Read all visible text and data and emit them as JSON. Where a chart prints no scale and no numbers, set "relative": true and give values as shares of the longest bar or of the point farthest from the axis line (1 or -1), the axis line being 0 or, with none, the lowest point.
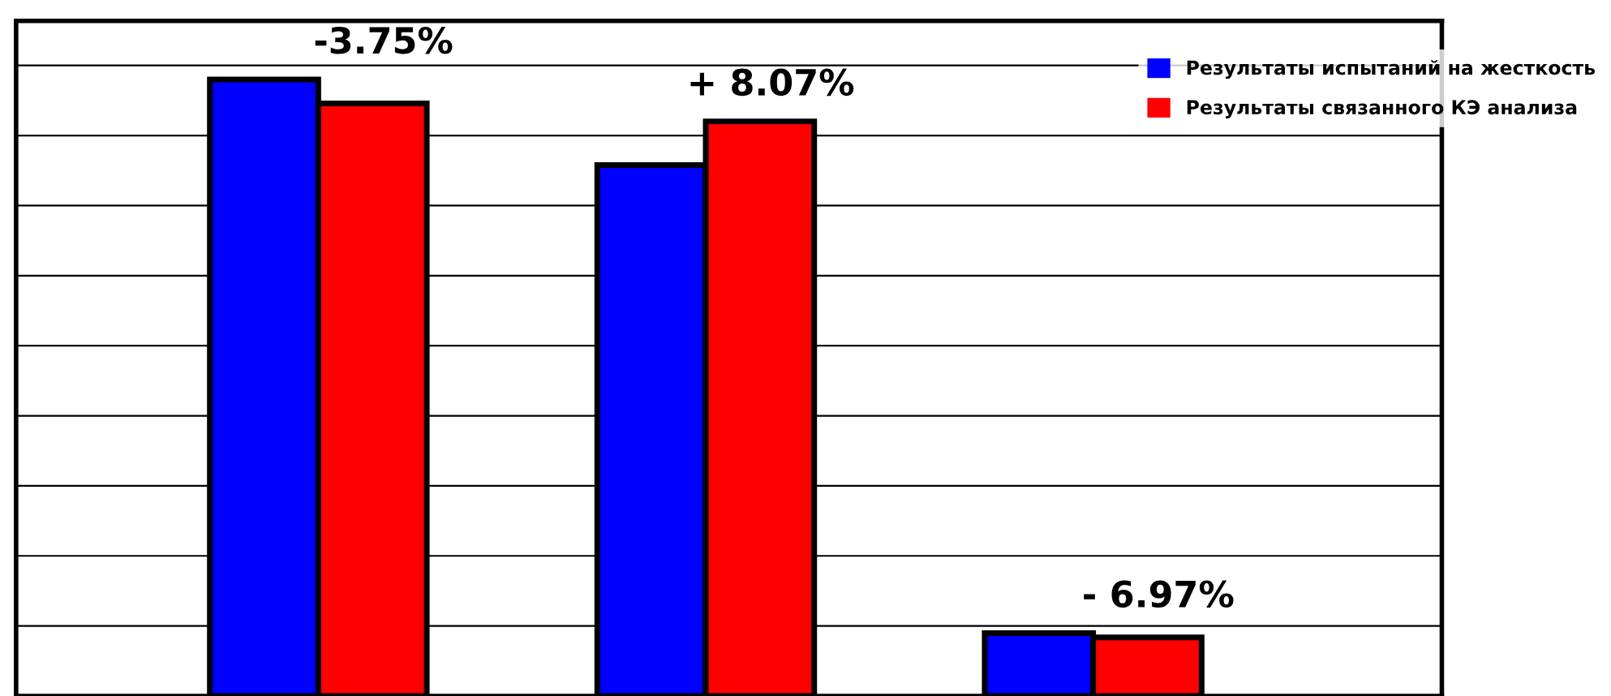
{
  "chart_data": {
    "type": "bar",
    "relative": true,
    "categories": [
      null,
      null,
      null
    ],
    "series": [
      {
        "name": "Результаты испытаний на жесткость",
        "color": "#0000ff",
        "values": [
          1,
          0.861,
          0.102
        ]
      },
      {
        "name": "Результаты связанного КЭ анализа",
        "color": "#ff0000",
        "values": [
          0.961,
          0.932,
          0.095
        ]
      }
    ],
    "annotations": [
      "-3.75%",
      "+ 8.07%",
      "- 6.97%"
    ],
    "grid": "y",
    "legend": "top right"
  }
}
